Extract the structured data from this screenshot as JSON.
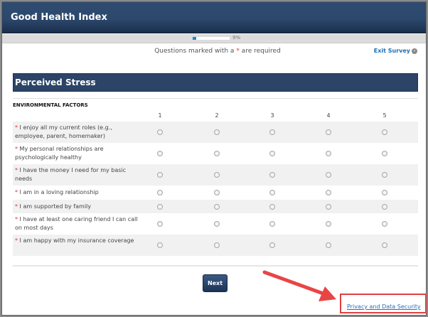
{
  "header": {
    "title": "Good Health Index"
  },
  "progress": {
    "percent": 9,
    "label": "9%"
  },
  "required_note": {
    "before": "Questions marked with a ",
    "asterisk": "*",
    "after": " are required"
  },
  "exit_survey": "Exit Survey",
  "section_title": "Perceived Stress",
  "category": "ENVIRONMENTAL FACTORS",
  "scale": [
    "1",
    "2",
    "3",
    "4",
    "5"
  ],
  "questions": [
    {
      "text": "I enjoy all my current roles (e.g., employee, parent, homemaker)"
    },
    {
      "text": "My personal relationships are psychologically healthy"
    },
    {
      "text": "I have the money I need for my basic needs"
    },
    {
      "text": "I am in a loving relationship"
    },
    {
      "text": "I am supported by family"
    },
    {
      "text": "I have at least one caring friend I can call on most days"
    },
    {
      "text": "I am happy with my insurance coverage"
    }
  ],
  "next_label": "Next",
  "privacy_link": "Privacy and Data Security",
  "colors": {
    "header": "#2c486c",
    "accent_red": "#e04040",
    "link": "#2a6cb5"
  }
}
